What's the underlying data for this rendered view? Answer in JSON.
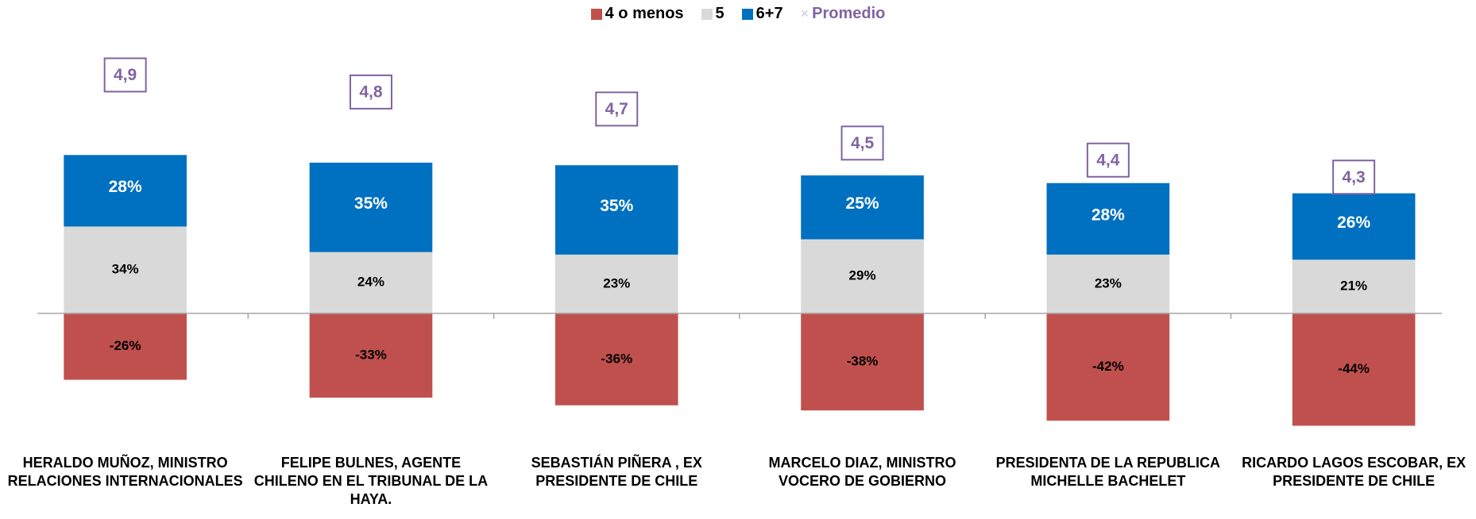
{
  "chart_data": {
    "type": "bar",
    "stacked": true,
    "categories": [
      "HERALDO MUÑOZ, MINISTRO RELACIONES INTERNACIONALES",
      "FELIPE BULNES,  AGENTE CHILENO EN EL TRIBUNAL DE LA HAYA.",
      "SEBASTIÁN PIÑERA , EX PRESIDENTE DE CHILE",
      "MARCELO DIAZ, MINISTRO VOCERO DE GOBIERNO",
      "PRESIDENTA DE LA REPUBLICA MICHELLE BACHELET",
      "RICARDO LAGOS ESCOBAR, EX PRESIDENTE DE CHILE"
    ],
    "series": [
      {
        "name": "4 o menos",
        "color": "#c0504d",
        "values": [
          -26,
          -33,
          -36,
          -38,
          -42,
          -44
        ],
        "value_labels": [
          "-26%",
          "-33%",
          "-36%",
          "-38%",
          "-42%",
          "-44%"
        ]
      },
      {
        "name": "5",
        "color": "#d9d9d9",
        "values": [
          34,
          24,
          23,
          29,
          23,
          21
        ],
        "value_labels": [
          "34%",
          "24%",
          "23%",
          "29%",
          "23%",
          "21%"
        ]
      },
      {
        "name": "6+7",
        "color": "#0070c0",
        "values": [
          28,
          35,
          35,
          25,
          28,
          26
        ],
        "value_labels": [
          "28%",
          "35%",
          "35%",
          "25%",
          "28%",
          "26%"
        ]
      },
      {
        "name": "Promedio",
        "color": "#8064a2",
        "axis": "y2",
        "marker": "x",
        "values": [
          4.9,
          4.8,
          4.7,
          4.5,
          4.4,
          4.3
        ],
        "value_labels": [
          "4,9",
          "4,8",
          "4,7",
          "4,5",
          "4,4",
          "4,3"
        ]
      }
    ],
    "ylim": [
      -60,
      100
    ],
    "y2lim": [
      2.6,
      5.0
    ],
    "legend": "top"
  }
}
